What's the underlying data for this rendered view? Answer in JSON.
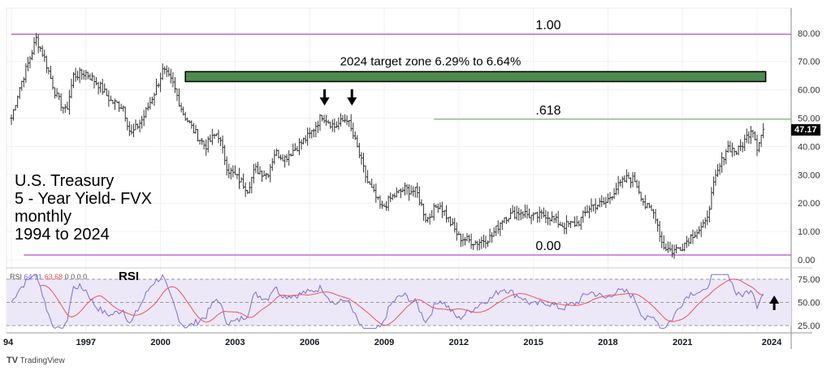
{
  "chart_data": {
    "type": "bar",
    "subtype": "ohlc-monthly",
    "title_lines": [
      "U.S. Treasury",
      "5 - Year Yield- FVX",
      "monthly",
      "1994 to 2024"
    ],
    "price_axis": {
      "ylim": [
        0,
        85
      ],
      "ticks": [
        "80.00",
        "70.00",
        "60.00",
        "50.00",
        "40.00",
        "30.00",
        "20.00",
        "10.00",
        "0.00"
      ],
      "tick_values": [
        80,
        70,
        60,
        50,
        40,
        30,
        20,
        10,
        0
      ]
    },
    "x_ticks": [
      {
        "label": "94",
        "year": 1994
      },
      {
        "label": "1997",
        "year": 1997
      },
      {
        "label": "2000",
        "year": 2000
      },
      {
        "label": "2003",
        "year": 2003
      },
      {
        "label": "2006",
        "year": 2006
      },
      {
        "label": "2009",
        "year": 2009
      },
      {
        "label": "2012",
        "year": 2012
      },
      {
        "label": "2015",
        "year": 2015
      },
      {
        "label": "2018",
        "year": 2018
      },
      {
        "label": "2021",
        "year": 2021
      },
      {
        "label": "2024",
        "year": 2024
      }
    ],
    "xlim": [
      1993.8,
      2025.3
    ],
    "price_anchors": [
      [
        1994.0,
        50
      ],
      [
        1994.3,
        60
      ],
      [
        1994.7,
        70
      ],
      [
        1995.0,
        78
      ],
      [
        1995.3,
        72
      ],
      [
        1995.8,
        58
      ],
      [
        1996.2,
        52
      ],
      [
        1996.5,
        65
      ],
      [
        1997.0,
        66
      ],
      [
        1997.5,
        62
      ],
      [
        1998.0,
        56
      ],
      [
        1998.5,
        54
      ],
      [
        1998.8,
        44
      ],
      [
        1999.3,
        50
      ],
      [
        1999.8,
        60
      ],
      [
        2000.1,
        67
      ],
      [
        2000.5,
        62
      ],
      [
        2000.9,
        52
      ],
      [
        2001.3,
        46
      ],
      [
        2001.8,
        40
      ],
      [
        2002.3,
        45
      ],
      [
        2002.7,
        32
      ],
      [
        2003.2,
        28
      ],
      [
        2003.5,
        25
      ],
      [
        2003.8,
        32
      ],
      [
        2004.3,
        30
      ],
      [
        2004.6,
        38
      ],
      [
        2005.0,
        36
      ],
      [
        2005.5,
        40
      ],
      [
        2006.0,
        44
      ],
      [
        2006.5,
        51
      ],
      [
        2007.0,
        47
      ],
      [
        2007.5,
        50
      ],
      [
        2007.9,
        40
      ],
      [
        2008.3,
        28
      ],
      [
        2008.9,
        18
      ],
      [
        2009.3,
        22
      ],
      [
        2009.8,
        25
      ],
      [
        2010.3,
        24
      ],
      [
        2010.7,
        14
      ],
      [
        2011.2,
        20
      ],
      [
        2011.6,
        14
      ],
      [
        2012.0,
        8
      ],
      [
        2012.7,
        6
      ],
      [
        2013.3,
        8
      ],
      [
        2013.8,
        15
      ],
      [
        2014.5,
        17
      ],
      [
        2015.0,
        15
      ],
      [
        2015.5,
        16
      ],
      [
        2016.2,
        12
      ],
      [
        2016.8,
        13
      ],
      [
        2017.3,
        19
      ],
      [
        2017.9,
        20
      ],
      [
        2018.3,
        25
      ],
      [
        2018.8,
        29
      ],
      [
        2019.1,
        28
      ],
      [
        2019.5,
        19
      ],
      [
        2019.9,
        16
      ],
      [
        2020.2,
        5
      ],
      [
        2020.6,
        3
      ],
      [
        2021.0,
        5
      ],
      [
        2021.4,
        9
      ],
      [
        2021.9,
        12
      ],
      [
        2022.3,
        28
      ],
      [
        2022.8,
        40
      ],
      [
        2023.2,
        38
      ],
      [
        2023.5,
        42
      ],
      [
        2023.8,
        47
      ],
      [
        2024.0,
        40
      ],
      [
        2024.3,
        47.17
      ]
    ],
    "last_price": "47.17",
    "fib_levels": [
      {
        "label": "1.00",
        "value": 79.6,
        "color": "#c46ad8",
        "from": 1994.0
      },
      {
        "label": ".618",
        "value": 49.6,
        "color": "#8fbf8f",
        "from": 2011.0
      },
      {
        "label": "0.00",
        "value": 1.7,
        "color": "#c46ad8",
        "from": 1994.5
      }
    ],
    "target_zone": {
      "label": "2024 target zone 6.29% to 6.64%",
      "low": 62.9,
      "high": 66.4,
      "from": 2001.0,
      "to": 2025.0,
      "color": "#4f8a4f"
    },
    "down_arrows_at": [
      2006.6,
      2007.7
    ],
    "up_arrow_at": 2024.2,
    "rsi": {
      "title": "RSI",
      "legend_label": "RSI",
      "value": "64.91",
      "ma_value": "63.68",
      "extra": "0 0 0 0",
      "ticks": [
        "75.00",
        "50.00",
        "25.00"
      ],
      "tick_values": [
        75,
        50,
        25
      ],
      "band": [
        30,
        70
      ],
      "line_color": "#7e6bd6",
      "ma_color": "#f0505a"
    }
  },
  "branding": "TradingView"
}
